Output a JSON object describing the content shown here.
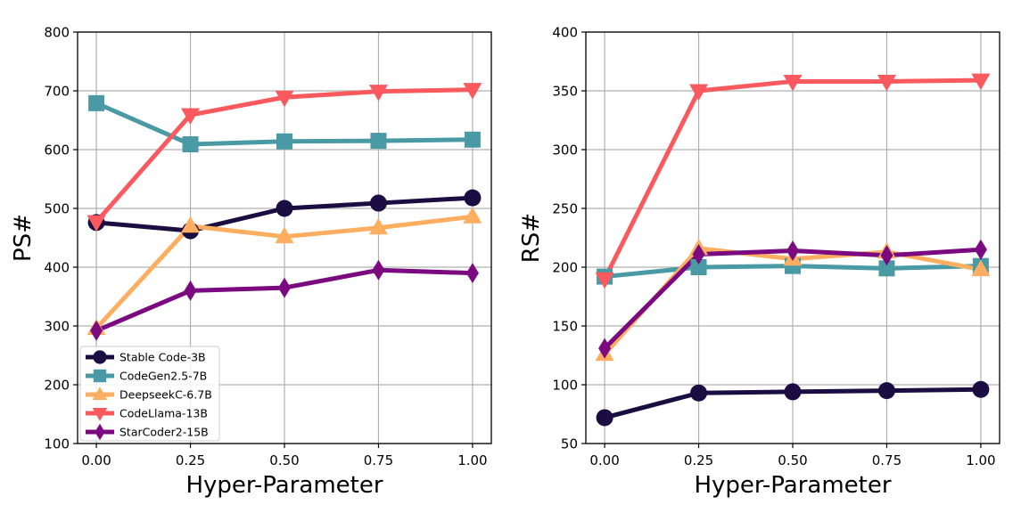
{
  "chart_data": [
    {
      "type": "line",
      "x": [
        0.0,
        0.25,
        0.5,
        0.75,
        1.0
      ],
      "xticks": [
        "0.00",
        "0.25",
        "0.50",
        "0.75",
        "1.00"
      ],
      "xlabel": "Hyper-Parameter",
      "ylabel": "PS#",
      "ylim": [
        100,
        800
      ],
      "yticks": [
        "100",
        "200",
        "300",
        "400",
        "500",
        "600",
        "700",
        "800"
      ],
      "grid": true,
      "legend": "lower-left",
      "series": [
        {
          "name": "Stable Code-3B",
          "color": "#1b0c41",
          "marker": "circle",
          "values": [
            476,
            462,
            500,
            509,
            518
          ]
        },
        {
          "name": "CodeGen2.5-7B",
          "color": "#4a9aa5",
          "marker": "square",
          "values": [
            679,
            609,
            614,
            615,
            617
          ]
        },
        {
          "name": "DeepseekC-6.7B",
          "color": "#fdae61",
          "marker": "triangle-up",
          "values": [
            296,
            470,
            452,
            467,
            486
          ]
        },
        {
          "name": "CodeLlama-13B",
          "color": "#fa5a5e",
          "marker": "triangle-down",
          "values": [
            477,
            659,
            689,
            699,
            702
          ]
        },
        {
          "name": "StarCoder2-15B",
          "color": "#7b0a80",
          "marker": "diamond",
          "values": [
            292,
            360,
            365,
            395,
            390
          ]
        }
      ]
    },
    {
      "type": "line",
      "x": [
        0.0,
        0.25,
        0.5,
        0.75,
        1.0
      ],
      "xticks": [
        "0.00",
        "0.25",
        "0.50",
        "0.75",
        "1.00"
      ],
      "xlabel": "Hyper-Parameter",
      "ylabel": "RS#",
      "ylim": [
        50,
        400
      ],
      "yticks": [
        "50",
        "100",
        "150",
        "200",
        "250",
        "300",
        "350",
        "400"
      ],
      "grid": true,
      "legend": "none",
      "series": [
        {
          "name": "Stable Code-3B",
          "color": "#1b0c41",
          "marker": "circle",
          "values": [
            72,
            93,
            94,
            95,
            96
          ]
        },
        {
          "name": "CodeGen2.5-7B",
          "color": "#4a9aa5",
          "marker": "square",
          "values": [
            192,
            200,
            201,
            199,
            201
          ]
        },
        {
          "name": "DeepseekC-6.7B",
          "color": "#fdae61",
          "marker": "triangle-up",
          "values": [
            126,
            216,
            207,
            213,
            198
          ]
        },
        {
          "name": "CodeLlama-13B",
          "color": "#fa5a5e",
          "marker": "triangle-down",
          "values": [
            190,
            350,
            358,
            358,
            359
          ]
        },
        {
          "name": "StarCoder2-15B",
          "color": "#7b0a80",
          "marker": "diamond",
          "values": [
            131,
            211,
            214,
            210,
            215
          ]
        }
      ]
    }
  ]
}
